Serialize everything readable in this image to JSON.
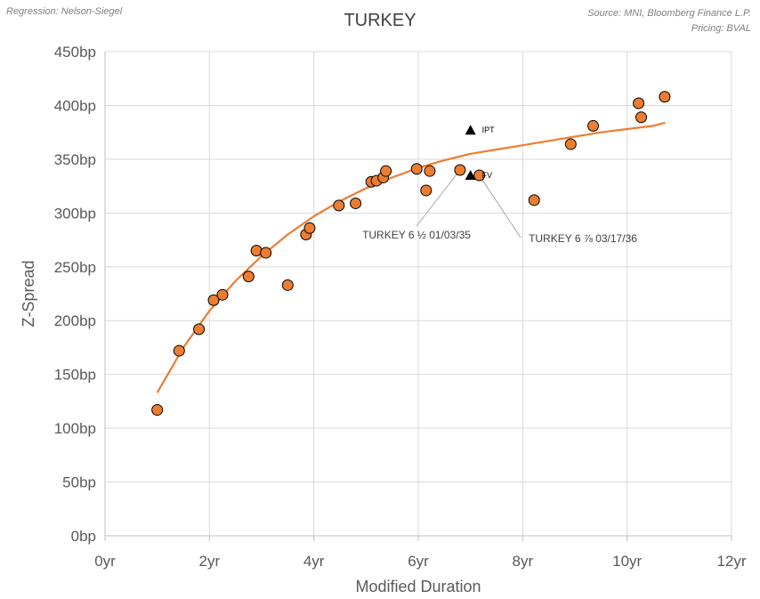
{
  "header": {
    "left_note": "Regression: Nelson-Siegel",
    "right_note_1": "Source: MNI, Bloomberg Finance L.P.",
    "right_note_2": "Pricing: BVAL"
  },
  "colors": {
    "point_fill": "#ED7D31",
    "point_stroke": "#000000",
    "curve": "#ED7D31",
    "grid": "#d9d9d9",
    "marker": "#000000"
  },
  "chart_data": {
    "type": "scatter",
    "title": "TURKEY",
    "xlabel": "Modified Duration",
    "ylabel": "Z-Spread",
    "xlim": [
      0,
      12
    ],
    "ylim": [
      0,
      450
    ],
    "x_ticks": [
      0,
      2,
      4,
      6,
      8,
      10,
      12
    ],
    "x_tick_labels": [
      "0yr",
      "2yr",
      "4yr",
      "6yr",
      "8yr",
      "10yr",
      "12yr"
    ],
    "y_ticks": [
      0,
      50,
      100,
      150,
      200,
      250,
      300,
      350,
      400,
      450
    ],
    "y_tick_labels": [
      "0bp",
      "50bp",
      "100bp",
      "150bp",
      "200bp",
      "250bp",
      "300bp",
      "350bp",
      "400bp",
      "450bp"
    ],
    "grid": true,
    "series": [
      {
        "kind": "points",
        "x": [
          1.0,
          1.42,
          1.8,
          2.08,
          2.25,
          2.75,
          2.9,
          3.08,
          3.5,
          3.85,
          3.92,
          4.48,
          4.8,
          5.1,
          5.2,
          5.33,
          5.38,
          5.97,
          6.15,
          6.22,
          6.8,
          7.17,
          8.22,
          8.92,
          9.35,
          10.22,
          10.27,
          10.72
        ],
        "y": [
          117,
          172,
          192,
          219,
          224,
          241,
          265,
          263,
          233,
          280,
          286,
          307,
          309,
          329,
          330,
          333,
          339,
          341,
          321,
          339,
          340,
          335,
          312,
          364,
          381,
          402,
          389,
          408
        ]
      },
      {
        "kind": "fit-curve",
        "x": [
          1.0,
          1.5,
          2.0,
          2.5,
          3.0,
          3.5,
          4.0,
          4.5,
          5.0,
          5.5,
          6.0,
          6.5,
          7.0,
          7.5,
          8.0,
          8.5,
          9.0,
          9.5,
          10.0,
          10.5,
          10.73
        ],
        "y": [
          133,
          175,
          209,
          237,
          260,
          280,
          297,
          311,
          323,
          333,
          342,
          349,
          355,
          359,
          363,
          367,
          371,
          375,
          378,
          381,
          384
        ]
      }
    ],
    "markers": [
      {
        "label": "IPT",
        "x": 7.0,
        "y": 377
      },
      {
        "label": "FV",
        "x": 7.0,
        "y": 335
      }
    ],
    "annotations": [
      {
        "text": "TURKEY 6 ½ 01/03/35",
        "x": 6.8,
        "y": 340
      },
      {
        "text": "TURKEY 6 ⅞ 03/17/36",
        "x": 7.17,
        "y": 335
      }
    ]
  }
}
